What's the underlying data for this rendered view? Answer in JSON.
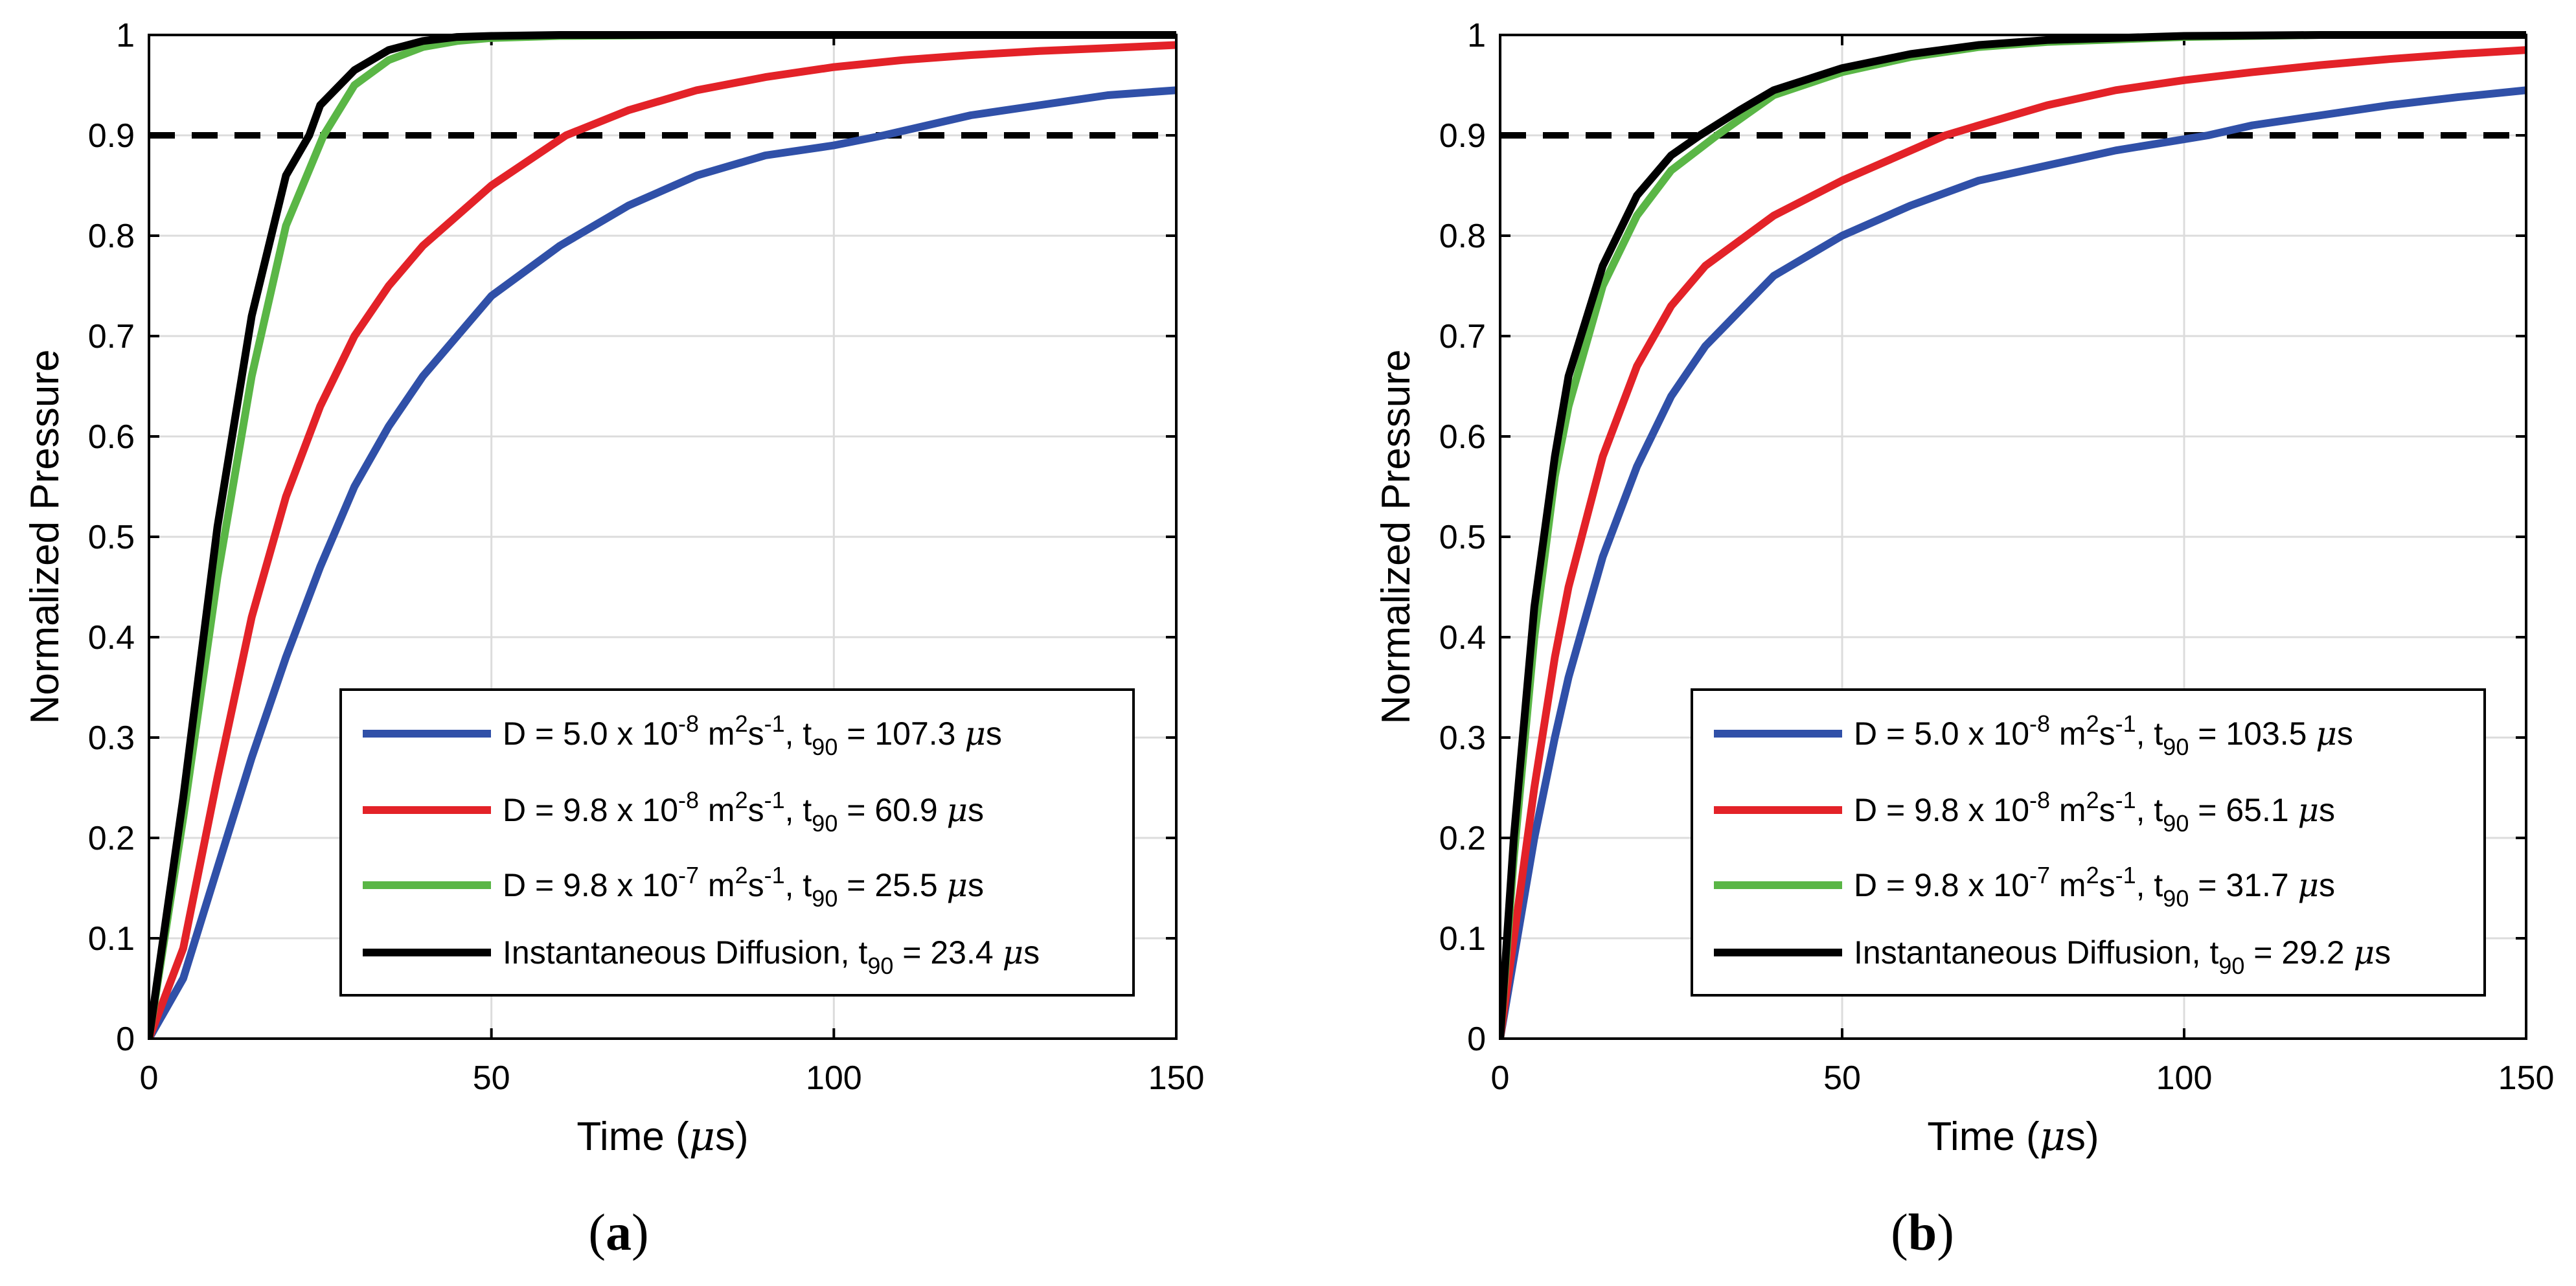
{
  "chart_data": [
    {
      "type": "line",
      "panel_label": "a",
      "xlabel": "Time (μs)",
      "ylabel": "Normalized Pressure",
      "xlim": [
        0,
        150
      ],
      "ylim": [
        0,
        1
      ],
      "x_ticks": [
        "0",
        "50",
        "100",
        "150"
      ],
      "y_ticks": [
        "0",
        "0.1",
        "0.2",
        "0.3",
        "0.4",
        "0.5",
        "0.6",
        "0.7",
        "0.8",
        "0.9",
        "1"
      ],
      "grid": true,
      "legend_position": "lower-right",
      "reference_line": {
        "y": 0.9,
        "style": "dashed",
        "color": "#000000"
      },
      "series": [
        {
          "name": "D = 5.0 x 10-8 m2s-1, t90 = 107.3 μs",
          "d_mant": "5.0",
          "d_exp": "-8",
          "t90": "107.3",
          "color": "#3050a8",
          "x": [
            0,
            5,
            10,
            15,
            20,
            25,
            30,
            35,
            40,
            50,
            60,
            70,
            80,
            90,
            100,
            107.3,
            120,
            130,
            140,
            150
          ],
          "y": [
            0,
            0.06,
            0.17,
            0.28,
            0.38,
            0.47,
            0.55,
            0.61,
            0.66,
            0.74,
            0.79,
            0.83,
            0.86,
            0.88,
            0.89,
            0.9,
            0.92,
            0.93,
            0.94,
            0.945
          ]
        },
        {
          "name": "D = 9.8 x 10-8 m2s-1, t90 = 60.9 μs",
          "d_mant": "9.8",
          "d_exp": "-8",
          "t90": "60.9",
          "color": "#e32228",
          "x": [
            0,
            5,
            10,
            15,
            20,
            25,
            30,
            35,
            40,
            50,
            60.9,
            70,
            80,
            90,
            100,
            110,
            120,
            130,
            140,
            150
          ],
          "y": [
            0,
            0.09,
            0.26,
            0.42,
            0.54,
            0.63,
            0.7,
            0.75,
            0.79,
            0.85,
            0.9,
            0.925,
            0.945,
            0.958,
            0.968,
            0.975,
            0.98,
            0.984,
            0.987,
            0.99
          ]
        },
        {
          "name": "D = 9.8 x 10-7 m2s-1, t90 = 25.5 μs",
          "d_mant": "9.8",
          "d_exp": "-7",
          "t90": "25.5",
          "color": "#5ab646",
          "x": [
            0,
            5,
            10,
            15,
            20,
            25.5,
            30,
            35,
            40,
            45,
            50,
            60,
            80,
            100,
            150
          ],
          "y": [
            0,
            0.22,
            0.46,
            0.66,
            0.81,
            0.9,
            0.95,
            0.975,
            0.988,
            0.994,
            0.997,
            0.999,
            1,
            1,
            1
          ]
        },
        {
          "name": "Instantaneous Diffusion, t90 = 23.4 μs",
          "t90": "23.4",
          "color": "#000000",
          "x": [
            0,
            5,
            10,
            15,
            20,
            23.4,
            25,
            30,
            35,
            40,
            45,
            50,
            60,
            80,
            100,
            150
          ],
          "y": [
            0,
            0.24,
            0.51,
            0.72,
            0.86,
            0.9,
            0.93,
            0.965,
            0.985,
            0.994,
            0.998,
            0.999,
            1,
            1,
            1,
            1
          ]
        }
      ]
    },
    {
      "type": "line",
      "panel_label": "b",
      "xlabel": "Time (μs)",
      "ylabel": "Normalized Pressure",
      "xlim": [
        0,
        150
      ],
      "ylim": [
        0,
        1
      ],
      "x_ticks": [
        "0",
        "50",
        "100",
        "150"
      ],
      "y_ticks": [
        "0",
        "0.1",
        "0.2",
        "0.3",
        "0.4",
        "0.5",
        "0.6",
        "0.7",
        "0.8",
        "0.9",
        "1"
      ],
      "grid": true,
      "legend_position": "lower-right",
      "reference_line": {
        "y": 0.9,
        "style": "dashed",
        "color": "#000000"
      },
      "series": [
        {
          "name": "D = 5.0 x 10-8 m2s-1, t90 = 103.5 μs",
          "d_mant": "5.0",
          "d_exp": "-8",
          "t90": "103.5",
          "color": "#3050a8",
          "x": [
            0,
            2,
            5,
            8,
            10,
            15,
            20,
            25,
            30,
            40,
            50,
            60,
            70,
            80,
            90,
            103.5,
            110,
            120,
            130,
            140,
            150
          ],
          "y": [
            0,
            0.08,
            0.2,
            0.3,
            0.36,
            0.48,
            0.57,
            0.64,
            0.69,
            0.76,
            0.8,
            0.83,
            0.855,
            0.87,
            0.885,
            0.9,
            0.91,
            0.92,
            0.93,
            0.938,
            0.945
          ]
        },
        {
          "name": "D = 9.8 x 10-8 m2s-1, t90 = 65.1 μs",
          "d_mant": "9.8",
          "d_exp": "-8",
          "t90": "65.1",
          "color": "#e32228",
          "x": [
            0,
            2,
            5,
            8,
            10,
            15,
            20,
            25,
            30,
            40,
            50,
            65.1,
            70,
            80,
            90,
            100,
            110,
            120,
            130,
            140,
            150
          ],
          "y": [
            0,
            0.1,
            0.25,
            0.38,
            0.45,
            0.58,
            0.67,
            0.73,
            0.77,
            0.82,
            0.855,
            0.9,
            0.91,
            0.93,
            0.945,
            0.955,
            0.963,
            0.97,
            0.976,
            0.981,
            0.985
          ]
        },
        {
          "name": "D = 9.8 x 10-7 m2s-1, t90 = 31.7 μs",
          "d_mant": "9.8",
          "d_exp": "-7",
          "t90": "31.7",
          "color": "#5ab646",
          "x": [
            0,
            2,
            5,
            8,
            10,
            15,
            20,
            25,
            31.7,
            40,
            50,
            60,
            70,
            80,
            100,
            120,
            150
          ],
          "y": [
            0,
            0.18,
            0.4,
            0.56,
            0.63,
            0.75,
            0.82,
            0.865,
            0.9,
            0.94,
            0.963,
            0.978,
            0.988,
            0.993,
            0.998,
            1,
            1
          ]
        },
        {
          "name": "Instantaneous Diffusion, t90 = 29.2 μs",
          "t90": "29.2",
          "color": "#000000",
          "x": [
            0,
            2,
            5,
            8,
            10,
            15,
            20,
            25,
            29.2,
            35,
            40,
            50,
            60,
            70,
            80,
            100,
            120,
            150
          ],
          "y": [
            0,
            0.2,
            0.43,
            0.58,
            0.66,
            0.77,
            0.84,
            0.88,
            0.9,
            0.925,
            0.945,
            0.967,
            0.981,
            0.99,
            0.995,
            0.999,
            1,
            1
          ]
        }
      ]
    }
  ]
}
